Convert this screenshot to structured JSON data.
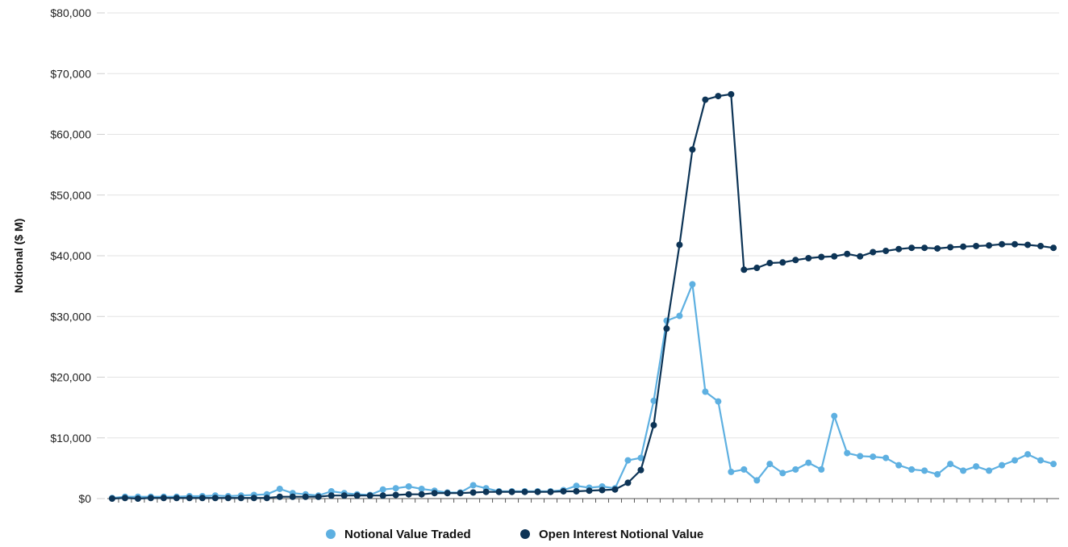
{
  "chart_data": {
    "type": "line",
    "title": "",
    "xlabel": "",
    "ylabel": "Notional ($ M)",
    "ylim": [
      0,
      80000
    ],
    "yticks": [
      0,
      10000,
      20000,
      30000,
      40000,
      50000,
      60000,
      70000,
      80000
    ],
    "ytick_labels": [
      "$0",
      "$10,000",
      "$20,000",
      "$30,000",
      "$40,000",
      "$50,000",
      "$60,000",
      "$70,000",
      "$80,000"
    ],
    "grid": true,
    "legend_position": "bottom-center",
    "series": [
      {
        "name": "Notional Value Traded",
        "color": "#5eb0e1",
        "values": [
          100,
          300,
          300,
          300,
          300,
          300,
          400,
          400,
          500,
          400,
          500,
          600,
          700,
          1600,
          900,
          700,
          500,
          1200,
          900,
          700,
          600,
          1500,
          1700,
          2000,
          1600,
          1300,
          1000,
          1000,
          2200,
          1700,
          1200,
          1200,
          1200,
          1200,
          1200,
          1400,
          2100,
          1800,
          2000,
          1700,
          6300,
          6700,
          16100,
          29300,
          30100,
          35300,
          17600,
          16000,
          4400,
          4800,
          3000,
          5700,
          4200,
          4800,
          5900,
          4800,
          13600,
          7500,
          7000,
          6900,
          6700,
          5500,
          4800,
          4600,
          4000,
          5700,
          4600,
          5300,
          4600,
          5500,
          6300,
          7300,
          6300,
          5700
        ]
      },
      {
        "name": "Open Interest Notional Value",
        "color": "#0d3456",
        "values": [
          0,
          100,
          0,
          100,
          100,
          100,
          100,
          100,
          100,
          100,
          100,
          100,
          100,
          300,
          300,
          300,
          300,
          500,
          500,
          500,
          500,
          500,
          600,
          700,
          700,
          900,
          900,
          900,
          1000,
          1100,
          1100,
          1100,
          1100,
          1100,
          1100,
          1200,
          1200,
          1300,
          1400,
          1500,
          2600,
          4700,
          12100,
          28000,
          41800,
          57500,
          65700,
          66300,
          66600,
          37700,
          38000,
          38800,
          38900,
          39300,
          39600,
          39800,
          39900,
          40300,
          39900,
          40600,
          40800,
          41100,
          41300,
          41300,
          41200,
          41400,
          41500,
          41600,
          41700,
          41900,
          41900,
          41800,
          41600,
          41300
        ]
      }
    ]
  }
}
